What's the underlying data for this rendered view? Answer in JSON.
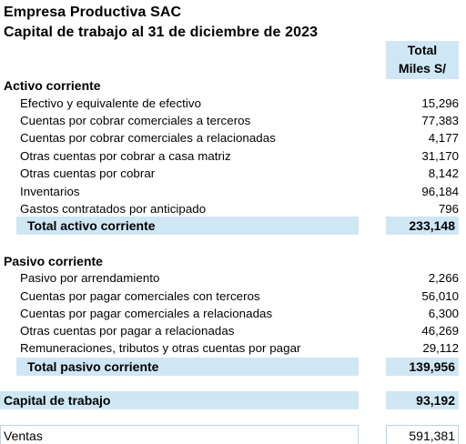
{
  "header": {
    "company": "Empresa Productiva SAC",
    "subtitle": "Capital de trabajo al 31 de diciembre de 2023"
  },
  "column_header": {
    "line1": "Total",
    "line2": "Miles S/"
  },
  "activo": {
    "title": "Activo corriente",
    "items": [
      {
        "label": "Efectivo y equivalente de efectivo",
        "value": "15,296"
      },
      {
        "label": "Cuentas por cobrar comerciales a terceros",
        "value": "77,383"
      },
      {
        "label": "Cuentas por cobrar comerciales a relacionadas",
        "value": "4,177"
      },
      {
        "label": "Otras cuentas por cobrar a casa matriz",
        "value": "31,170"
      },
      {
        "label": "Otras cuentas por cobrar",
        "value": "8,142"
      },
      {
        "label": "Inventarios",
        "value": "96,184"
      },
      {
        "label": "Gastos contratados por anticipado",
        "value": "796"
      }
    ],
    "total_label": "Total activo corriente",
    "total_value": "233,148"
  },
  "pasivo": {
    "title": "Pasivo corriente",
    "items": [
      {
        "label": "Pasivo por arrendamiento",
        "value": "2,266"
      },
      {
        "label": "Cuentas por pagar comerciales con terceros",
        "value": "56,010"
      },
      {
        "label": "Cuentas por pagar comerciales a relacionadas",
        "value": "6,300"
      },
      {
        "label": "Otras cuentas por pagar a relacionadas",
        "value": "46,269"
      },
      {
        "label": "Remuneraciones, tributos y otras cuentas por pagar",
        "value": "29,112"
      }
    ],
    "total_label": "Total pasivo corriente",
    "total_value": "139,956"
  },
  "capital": {
    "label": "Capital de trabajo",
    "value": "93,192"
  },
  "ventas": {
    "label": "Ventas",
    "value": "591,381"
  }
}
